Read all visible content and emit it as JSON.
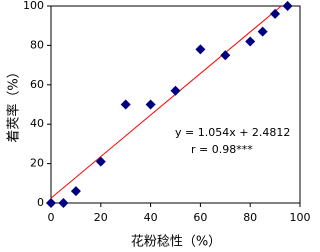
{
  "chart_data": {
    "type": "scatter",
    "x_label": "花粉稔性（%）",
    "y_label": "着莢率（%）",
    "series": [
      {
        "color": "#000080",
        "x": [
          0,
          5,
          10,
          20,
          30,
          40,
          50,
          60,
          70,
          80,
          85,
          90,
          95
        ],
        "values": [
          0,
          0,
          6,
          21,
          50,
          50,
          57,
          78,
          75,
          82,
          87,
          96,
          100
        ]
      }
    ],
    "fit_line": {
      "color": "#ff0000",
      "x": [
        0,
        92.5
      ],
      "y": [
        2.4812,
        100
      ]
    },
    "annotations": [
      "y = 1.054x + 2.4812",
      "r = 0.98***"
    ],
    "xlim": [
      0,
      100
    ],
    "xticks": [
      0,
      20,
      40,
      60,
      80,
      100
    ],
    "ylim": [
      0,
      100
    ],
    "yticks": [
      0,
      20,
      40,
      60,
      80,
      100
    ],
    "grid": false
  }
}
